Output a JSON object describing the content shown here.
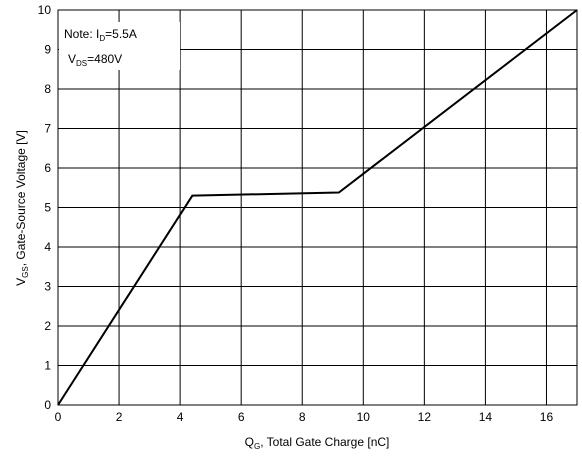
{
  "chart_data": {
    "type": "line",
    "title": "",
    "xlabel": {
      "main": "Q",
      "sub": "G",
      "rest": ", Total Gate Charge [nC]"
    },
    "ylabel": {
      "main": "V",
      "sub": "GS",
      "rest": ", Gate-Source Voltage [V]"
    },
    "xlim": [
      0,
      17
    ],
    "ylim": [
      0,
      10
    ],
    "xticks": [
      0,
      2,
      4,
      6,
      8,
      10,
      12,
      14,
      16
    ],
    "yticks": [
      0,
      1,
      2,
      3,
      4,
      5,
      6,
      7,
      8,
      9,
      10
    ],
    "grid": true,
    "grid_x_step": 2,
    "grid_y_step": 1,
    "series": [
      {
        "x": [
          0,
          4.4,
          9.2,
          17
        ],
        "y": [
          0,
          5.3,
          5.38,
          10
        ],
        "color": "#000000"
      }
    ],
    "note": {
      "line1": {
        "prefix": "Note: I",
        "sub": "D",
        "suffix": "=5.5A"
      },
      "line2": {
        "prefix": "V",
        "sub": "DS",
        "suffix": "=480V"
      }
    }
  }
}
